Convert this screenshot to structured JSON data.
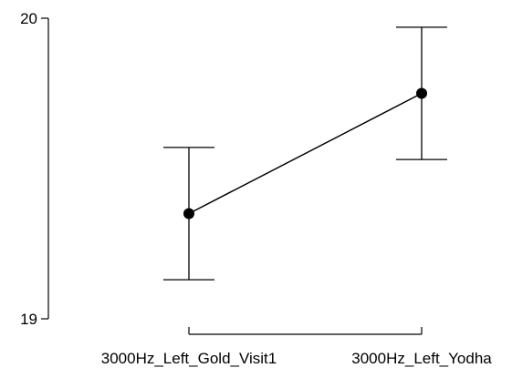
{
  "chart_data": {
    "type": "line",
    "categories": [
      "3000Hz_Left_Gold_Visit1",
      "3000Hz_Left_Yodha"
    ],
    "series": [
      {
        "values": [
          19.35,
          19.75
        ],
        "error_low": [
          19.13,
          19.53
        ],
        "error_high": [
          19.57,
          19.97
        ]
      }
    ],
    "y_ticks": [
      19,
      20
    ],
    "ylim": [
      19,
      20
    ],
    "grid": false,
    "legend": "none",
    "title": "",
    "xlabel": "",
    "ylabel": ""
  }
}
